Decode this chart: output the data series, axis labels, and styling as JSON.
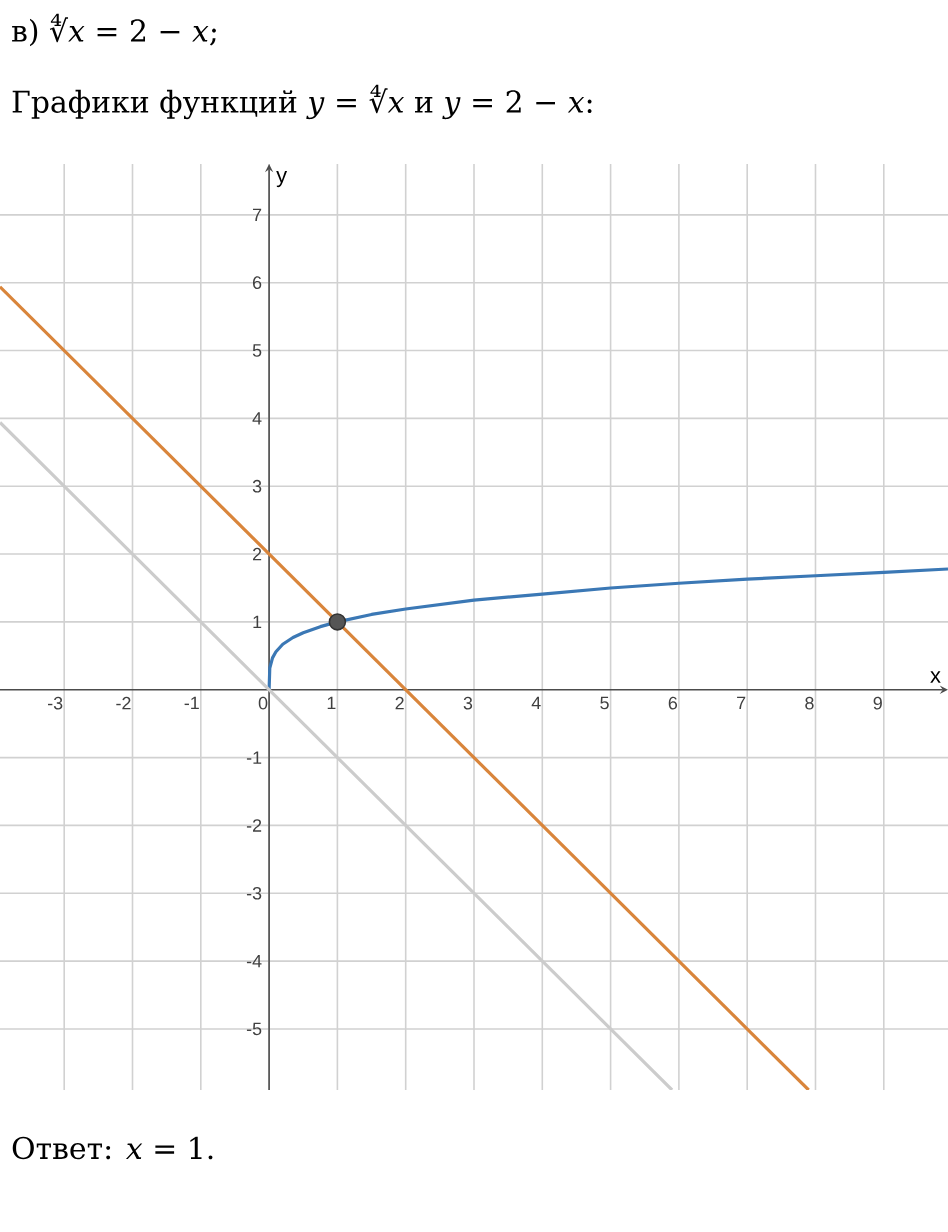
{
  "chart_data": {
    "type": "line",
    "title": "в) ∜*x* = 2 − *x*;",
    "subtitle": "Графики функций *y* = ∜*x* и *y* = 2 − *x*:",
    "annotations": [
      "Ответ:  *x* = 1."
    ],
    "xlabel": "x",
    "ylabel": "y",
    "xlim": [
      -3.94,
      9.94
    ],
    "ylim": [
      -5.9,
      7.75
    ],
    "xticks": [
      -3,
      -2,
      -1,
      0,
      1,
      2,
      3,
      4,
      5,
      6,
      7,
      8,
      9
    ],
    "yticks": [
      -5,
      -4,
      -3,
      -2,
      -1,
      1,
      2,
      3,
      4,
      5,
      6,
      7
    ],
    "grid": true,
    "series": [
      {
        "color": "#3b78b5",
        "x": [
          0,
          0.01,
          0.05,
          0.1,
          0.2,
          0.35,
          0.5,
          0.75,
          1,
          1.5,
          2,
          3,
          4,
          5,
          6,
          7,
          8,
          9,
          9.94
        ],
        "values": [
          0,
          0.32,
          0.47,
          0.56,
          0.67,
          0.77,
          0.84,
          0.93,
          1,
          1.11,
          1.19,
          1.32,
          1.41,
          1.5,
          1.57,
          1.63,
          1.68,
          1.73,
          1.78
        ]
      },
      {
        "color": "#d9853b",
        "x": [
          -3.94,
          7.9
        ],
        "values": [
          5.94,
          -5.9
        ]
      },
      {
        "color": "#cccccc",
        "x": [
          -3.94,
          5.9
        ],
        "values": [
          3.94,
          -5.9
        ]
      },
      {
        "type": "scatter",
        "marker": "circle",
        "color": "#555555",
        "x": [
          1
        ],
        "values": [
          1
        ]
      }
    ]
  }
}
